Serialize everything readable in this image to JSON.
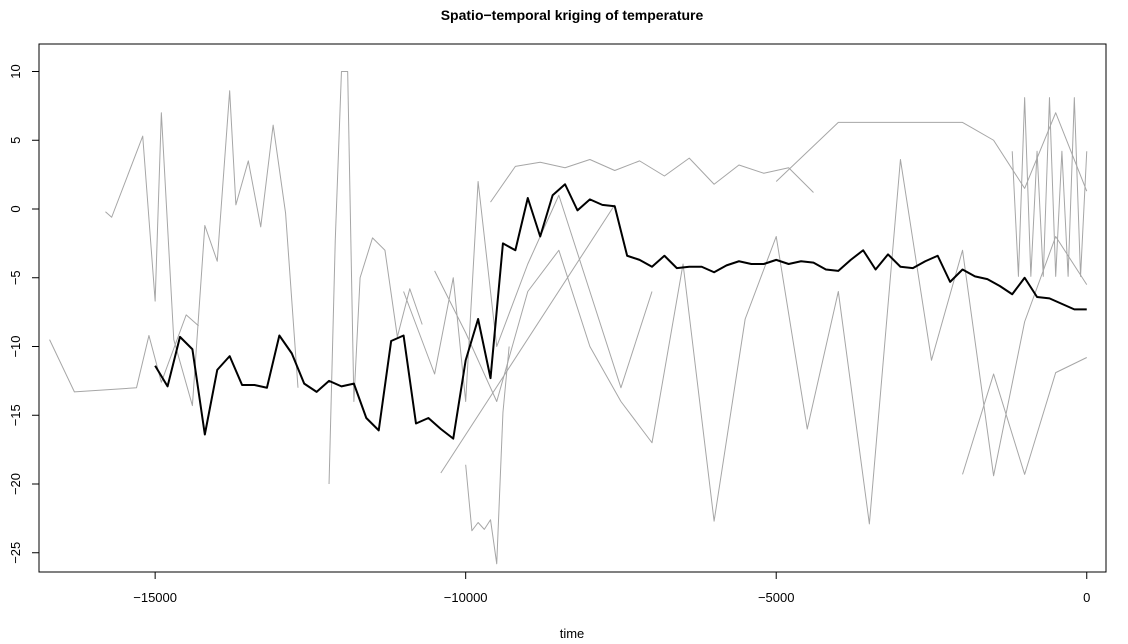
{
  "chart_data": {
    "type": "line",
    "title": "Spatio−temporal kriging of temperature",
    "xlabel": "time",
    "xlim": [
      -16870,
      310
    ],
    "ylim": [
      -26.4,
      12
    ],
    "xticks": [
      {
        "value": -15000,
        "label": "−15000"
      },
      {
        "value": -10000,
        "label": "−10000"
      },
      {
        "value": -5000,
        "label": "−5000"
      },
      0
    ],
    "yticks": [
      {
        "value": -25,
        "label": "−25"
      },
      {
        "value": -20,
        "label": "−20"
      },
      {
        "value": -15,
        "label": "−15"
      },
      {
        "value": -10,
        "label": "−10"
      },
      {
        "value": -5,
        "label": "−5"
      },
      0,
      5,
      10
    ],
    "series": [
      {
        "color": "#a6a6a6",
        "width": 1,
        "x": [
          -16700,
          -16300,
          -15300,
          -15100,
          -14900,
          -14500,
          -14300
        ],
        "values": [
          -9.5,
          -13.3,
          -13.0,
          -9.2,
          -12.6,
          -7.7,
          -8.5
        ]
      },
      {
        "color": "#a6a6a6",
        "width": 1,
        "x": [
          -15800,
          -15700,
          -15200,
          -15000,
          -14900,
          -14700,
          -14400,
          -14200,
          -14000,
          -13800,
          -13700,
          -13500,
          -13300,
          -13100,
          -12900,
          -12700
        ],
        "values": [
          -0.2,
          -0.6,
          5.3,
          -6.7,
          7.0,
          -9.5,
          -14.3,
          -1.2,
          -3.8,
          8.6,
          0.3,
          3.5,
          -1.3,
          6.1,
          -0.3,
          -13
        ]
      },
      {
        "color": "#a6a6a6",
        "width": 1,
        "x": [
          -12200,
          -12100,
          -12000,
          -11900,
          -11800,
          -11700,
          -11500,
          -11300,
          -11100,
          -10900,
          -10700
        ],
        "values": [
          -20,
          -2.3,
          10,
          10,
          -14,
          -5.0,
          -2.1,
          -3,
          -9.3,
          -5.8,
          -8.4
        ]
      },
      {
        "color": "#a6a6a6",
        "width": 1,
        "x": [
          -10400,
          -7600
        ],
        "values": [
          -19.2,
          0.3
        ]
      },
      {
        "color": "#a6a6a6",
        "width": 1,
        "x": [
          -10000,
          -9900,
          -9800,
          -9700,
          -9600,
          -9500,
          -9400,
          -9300
        ],
        "values": [
          -18.6,
          -23.4,
          -22.8,
          -23.3,
          -22.6,
          -25.8,
          -14.8,
          -10
        ]
      },
      {
        "color": "#a6a6a6",
        "width": 1,
        "x": [
          -9600,
          -9200,
          -8800,
          -8400,
          -8000,
          -7600,
          -7200,
          -6800,
          -6400,
          -6000,
          -5600,
          -5200,
          -4800,
          -4400
        ],
        "values": [
          0.5,
          3.1,
          3.4,
          3.0,
          3.6,
          2.8,
          3.5,
          2.4,
          3.7,
          1.8,
          3.2,
          2.6,
          3.0,
          1.2
        ]
      },
      {
        "color": "#a6a6a6",
        "width": 1,
        "x": [
          -10500,
          -10000,
          -9500,
          -9000,
          -8500,
          -8000,
          -7500,
          -7000,
          -6500,
          -6000,
          -5500,
          -5000,
          -4500,
          -4000,
          -3500,
          -3000,
          -2500,
          -2000,
          -1500,
          -1000,
          -500,
          0
        ],
        "values": [
          -4.5,
          -9,
          -14,
          -6,
          -3,
          -10,
          -14,
          -17,
          -4,
          -22.7,
          -8,
          -2,
          -16,
          -6,
          -22.9,
          3.6,
          -11,
          -3,
          -19.4,
          -8.2,
          -2,
          -5.5
        ]
      },
      {
        "color": "#a6a6a6",
        "width": 1,
        "x": [
          -11000,
          -10500,
          -10200,
          -10000,
          -9800,
          -9500,
          -9000,
          -8500,
          -8000,
          -7500,
          -7000
        ],
        "values": [
          -6,
          -12,
          -5,
          -14,
          2,
          -10,
          -4,
          1,
          -6,
          -13,
          -6
        ]
      },
      {
        "color": "#a6a6a6",
        "width": 1,
        "x": [
          -5000,
          -4000,
          -3000,
          -2000,
          -1500,
          -1000,
          -500,
          0
        ],
        "values": [
          2.0,
          6.3,
          6.3,
          6.3,
          5.0,
          1.5,
          7.0,
          1.3
        ]
      },
      {
        "color": "#a6a6a6",
        "width": 1,
        "x": [
          -2000,
          -1500,
          -1000,
          -500,
          0
        ],
        "values": [
          -19.3,
          -12,
          -19.3,
          -11.9,
          -10.8
        ]
      },
      {
        "color": "#a6a6a6",
        "width": 1,
        "x": [
          -1200,
          -1100,
          -1000,
          -900,
          -800,
          -700,
          -600,
          -500,
          -400,
          -300,
          -200,
          -100,
          0
        ],
        "values": [
          4.2,
          -4.9,
          8.1,
          -4.9,
          4.2,
          -4.9,
          8.1,
          -4.9,
          4.2,
          -4.9,
          8.1,
          -4.9,
          4.2
        ]
      },
      {
        "color": "#000000",
        "width": 2,
        "x": [
          -15000,
          -14800,
          -14600,
          -14400,
          -14200,
          -14000,
          -13800,
          -13600,
          -13400,
          -13200,
          -13000,
          -12800,
          -12600,
          -12400,
          -12200,
          -12000,
          -11800,
          -11600,
          -11400,
          -11200,
          -11000,
          -10800,
          -10600,
          -10400,
          -10200,
          -10000,
          -9800,
          -9600,
          -9400,
          -9200,
          -9000,
          -8800,
          -8600,
          -8400,
          -8200,
          -8000,
          -7800,
          -7600,
          -7400,
          -7200,
          -7000,
          -6800,
          -6600,
          -6400,
          -6200,
          -6000,
          -5800,
          -5600,
          -5400,
          -5200,
          -5000,
          -4800,
          -4600,
          -4400,
          -4200,
          -4000,
          -3800,
          -3600,
          -3400,
          -3200,
          -3000,
          -2800,
          -2600,
          -2400,
          -2200,
          -2000,
          -1800,
          -1600,
          -1400,
          -1200,
          -1000,
          -800,
          -600,
          -400,
          -200,
          0
        ],
        "values": [
          -11.4,
          -12.9,
          -9.3,
          -10.2,
          -16.4,
          -11.7,
          -10.7,
          -12.8,
          -12.8,
          -13.0,
          -9.2,
          -10.5,
          -12.7,
          -13.3,
          -12.5,
          -12.9,
          -12.7,
          -15.2,
          -16.1,
          -9.6,
          -9.2,
          -15.6,
          -15.2,
          -16.0,
          -16.7,
          -11.0,
          -8.0,
          -12.3,
          -2.5,
          -3.0,
          0.8,
          -2.0,
          1.0,
          1.8,
          -0.1,
          0.7,
          0.3,
          0.2,
          -3.4,
          -3.7,
          -4.2,
          -3.4,
          -4.3,
          -4.2,
          -4.2,
          -4.6,
          -4.1,
          -3.8,
          -4.0,
          -4.0,
          -3.7,
          -4.0,
          -3.8,
          -3.9,
          -4.4,
          -4.5,
          -3.7,
          -3.0,
          -4.4,
          -3.3,
          -4.2,
          -4.3,
          -3.8,
          -3.4,
          -5.3,
          -4.4,
          -4.9,
          -5.1,
          -5.6,
          -6.2,
          -5.0,
          -6.4,
          -6.5,
          -6.9,
          -7.3,
          -7.3
        ]
      }
    ]
  }
}
